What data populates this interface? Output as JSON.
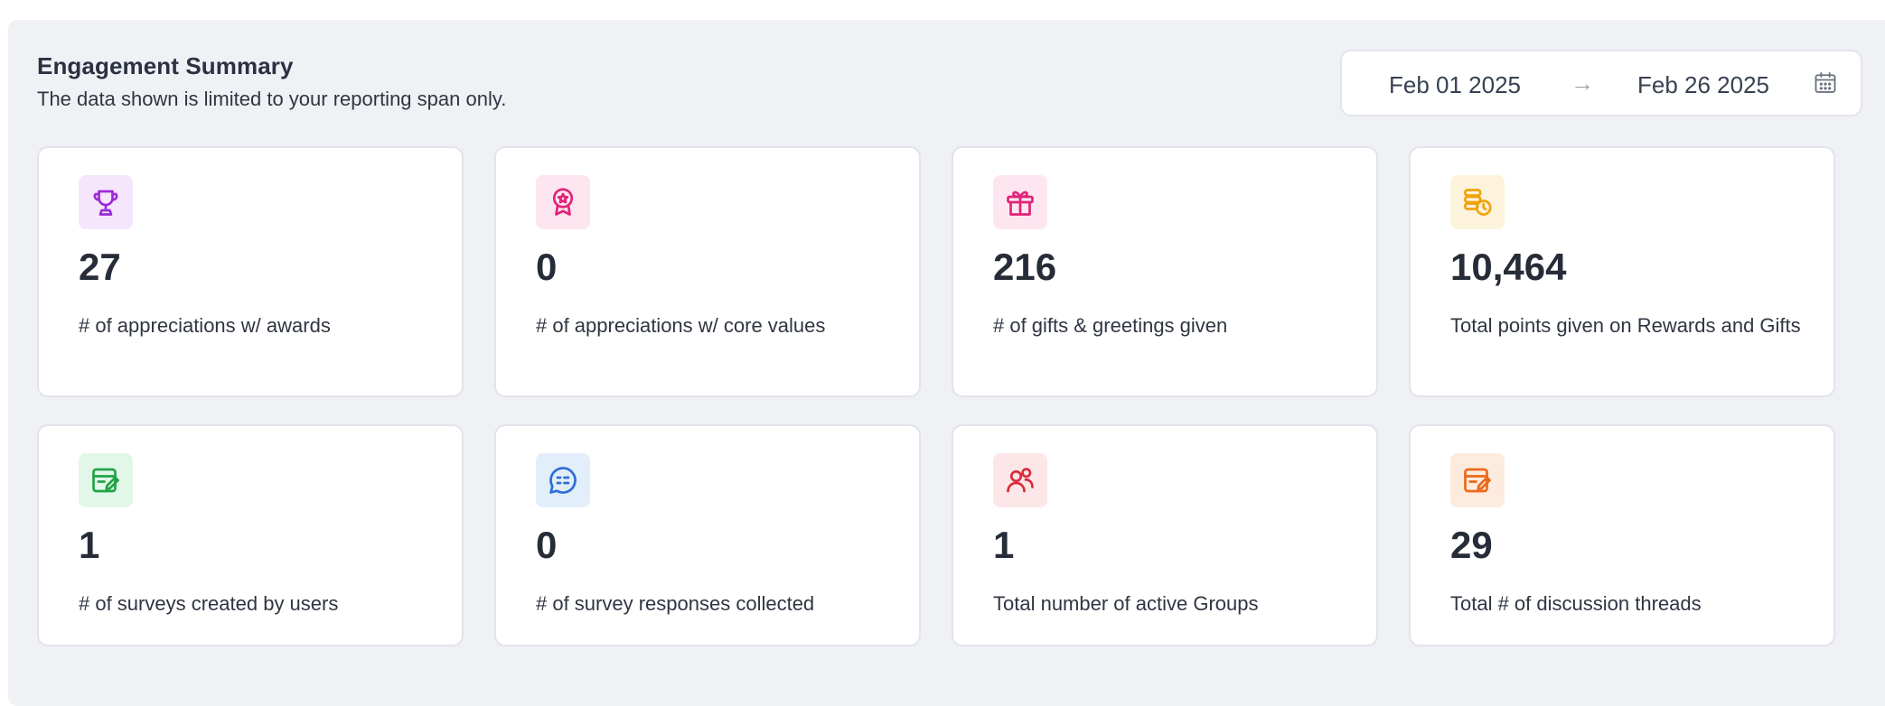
{
  "header": {
    "title": "Engagement Summary",
    "subtitle": "The data shown is limited to your reporting span only."
  },
  "date_range": {
    "start": "Feb 01 2025",
    "arrow": "→",
    "end": "Feb 26 2025",
    "icon": "calendar-icon"
  },
  "cards": [
    {
      "value": "27",
      "label": "# of appreciations w/ awards",
      "icon": "trophy-icon",
      "icon_color": "#9b2bd6",
      "icon_bg": "#f5e6fb"
    },
    {
      "value": "0",
      "label": "# of appreciations w/ core values",
      "icon": "award-badge-icon",
      "icon_color": "#e0247a",
      "icon_bg": "#fde6f0"
    },
    {
      "value": "216",
      "label": "# of gifts & greetings given",
      "icon": "gift-icon",
      "icon_color": "#e0247a",
      "icon_bg": "#fde6f0"
    },
    {
      "value": "10,464",
      "label": "Total points given on Rewards and Gifts",
      "icon": "coins-icon",
      "icon_color": "#f0a30a",
      "icon_bg": "#fdf3dd"
    },
    {
      "value": "1",
      "label": "# of surveys created by users",
      "icon": "survey-edit-icon",
      "icon_color": "#22a447",
      "icon_bg": "#e3f7e9"
    },
    {
      "value": "0",
      "label": "# of survey responses collected",
      "icon": "chat-bubble-icon",
      "icon_color": "#2d6fd6",
      "icon_bg": "#e3eefb"
    },
    {
      "value": "1",
      "label": "Total number of active Groups",
      "icon": "users-icon",
      "icon_color": "#d92c3c",
      "icon_bg": "#fde6e8"
    },
    {
      "value": "29",
      "label": "Total # of discussion threads",
      "icon": "discussion-edit-icon",
      "icon_color": "#ea6a1c",
      "icon_bg": "#fdebdd"
    }
  ]
}
